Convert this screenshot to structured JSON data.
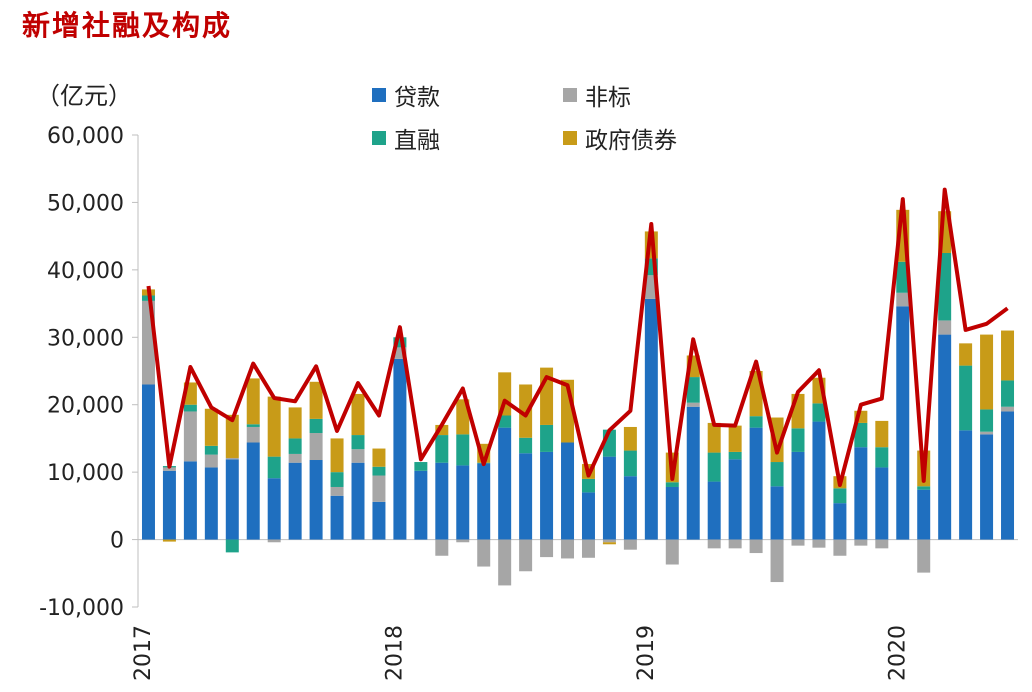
{
  "title": "新增社融及构成",
  "unit_label": "（亿元）",
  "chart_data": {
    "type": "bar",
    "stacked": true,
    "ylim": [
      -10000,
      60000
    ],
    "yticks": [
      -10000,
      0,
      10000,
      20000,
      30000,
      40000,
      50000,
      60000
    ],
    "ytick_labels": [
      "-10,000",
      "0",
      "10,000",
      "20,000",
      "30,000",
      "40,000",
      "50,000",
      "60,000"
    ],
    "x_labels": [
      {
        "index": 0,
        "text": "2017"
      },
      {
        "index": 12,
        "text": "2018"
      },
      {
        "index": 24,
        "text": "2019"
      },
      {
        "index": 36,
        "text": "2020"
      }
    ],
    "legend": [
      "贷款",
      "非标",
      "直融",
      "政府债券"
    ],
    "legend_position": "top",
    "series": [
      {
        "name": "贷款",
        "color": "#1f6fbf",
        "values": [
          23000,
          10200,
          11600,
          10700,
          11900,
          14400,
          9100,
          11400,
          11800,
          6500,
          11400,
          5600,
          26800,
          10200,
          11400,
          11000,
          11300,
          16600,
          12800,
          13000,
          14400,
          7000,
          12300,
          9400,
          35700,
          7800,
          19700,
          8600,
          11900,
          16600,
          7900,
          13000,
          17500,
          5400,
          13700,
          10700,
          34600,
          7400,
          30400,
          16200,
          15600,
          19000
        ]
      },
      {
        "name": "非标",
        "color": "#a6a6a6",
        "values": [
          12400,
          500,
          7400,
          1900,
          200,
          2300,
          -400,
          1300,
          4000,
          1300,
          2000,
          3900,
          1700,
          0,
          -2400,
          -400,
          -4000,
          -6800,
          -4700,
          -2600,
          -2800,
          -2700,
          -400,
          -1500,
          3500,
          -3700,
          600,
          -1300,
          -1300,
          -2000,
          -6300,
          -900,
          -1200,
          -2400,
          -900,
          -1300,
          2000,
          -4900,
          2100,
          0,
          400,
          700
        ]
      },
      {
        "name": "直融",
        "color": "#1ea38a",
        "values": [
          800,
          200,
          1000,
          1300,
          -1900,
          400,
          3200,
          2300,
          2100,
          2200,
          2100,
          1300,
          1500,
          1300,
          4100,
          4600,
          100,
          1800,
          2300,
          4000,
          0,
          2000,
          4000,
          3800,
          2500,
          700,
          3800,
          4300,
          1100,
          1700,
          3600,
          3500,
          2700,
          2200,
          3600,
          3000,
          4600,
          500,
          10000,
          9600,
          3300,
          3900
        ]
      },
      {
        "name": "政府债券",
        "color": "#c89b18",
        "values": [
          900,
          -300,
          3300,
          5500,
          6400,
          6800,
          8900,
          4600,
          5500,
          5000,
          6100,
          2700,
          0,
          0,
          1500,
          5200,
          2800,
          6400,
          7900,
          8500,
          9300,
          2200,
          -300,
          3500,
          4000,
          4400,
          3200,
          4400,
          3900,
          6700,
          6600,
          5100,
          3800,
          1800,
          1800,
          3900,
          7700,
          5300,
          6200,
          3300,
          11100,
          7400
        ]
      },
      {
        "name": "total",
        "color": "#c00000",
        "values": [
          37600,
          10800,
          25600,
          19600,
          17700,
          26100,
          21000,
          20500,
          25700,
          16100,
          23200,
          18400,
          31500,
          11900,
          17000,
          22400,
          11200,
          20600,
          18400,
          24100,
          22900,
          9500,
          16200,
          19100,
          46800,
          9000,
          29700,
          17000,
          16900,
          26400,
          12900,
          21900,
          25100,
          8100,
          20000,
          20900,
          50500,
          8700,
          51900,
          31100,
          32000,
          34300
        ]
      }
    ]
  }
}
